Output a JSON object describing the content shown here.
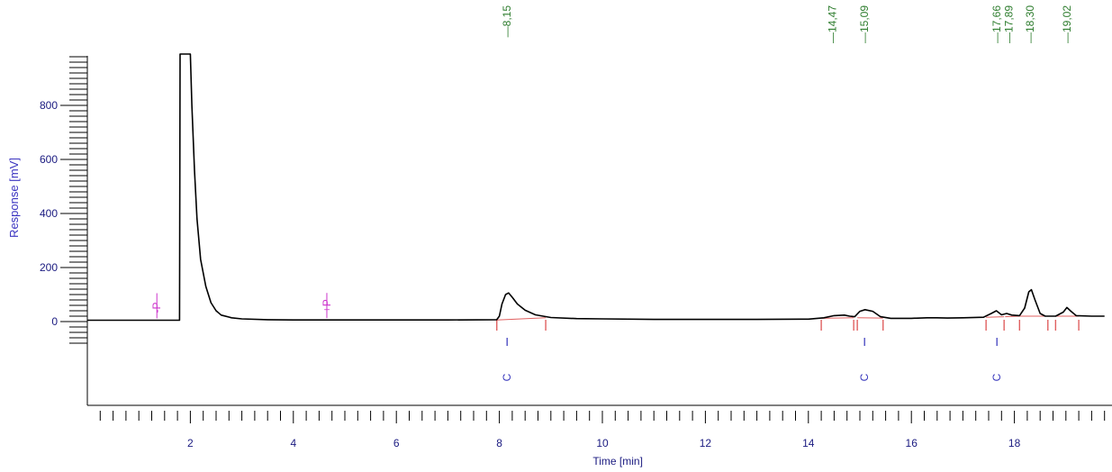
{
  "chart_data": {
    "type": "line",
    "xlabel": "Time [min]",
    "ylabel": "Response [mV]",
    "xlim": [
      0,
      19.75
    ],
    "ylim": [
      -80,
      1000
    ],
    "x_ticks": [
      2,
      4,
      6,
      8,
      10,
      12,
      14,
      16,
      18
    ],
    "x_tick_labels": [
      "2",
      "4",
      "6",
      "8",
      "10",
      "12",
      "14",
      "16",
      "18"
    ],
    "y_ticks": [
      0,
      200,
      400,
      600,
      800
    ],
    "y_tick_labels": [
      "0",
      "200",
      "400",
      "600",
      "800"
    ],
    "colors": {
      "trace": "#000000",
      "axis": "#000000",
      "tick_label": "#1a1a80",
      "ylabel": "#3a33c0",
      "peak_label": "#2e7d2e",
      "event": "#cc33cc",
      "baseline": "#e06060",
      "marker": "#3333bb"
    },
    "series": [
      {
        "values": [
          [
            0.0,
            5
          ],
          [
            1.79,
            5
          ],
          [
            1.8,
            990
          ],
          [
            2.0,
            990
          ],
          [
            2.03,
            800
          ],
          [
            2.08,
            560
          ],
          [
            2.13,
            380
          ],
          [
            2.2,
            230
          ],
          [
            2.3,
            130
          ],
          [
            2.4,
            70
          ],
          [
            2.5,
            40
          ],
          [
            2.6,
            24
          ],
          [
            2.8,
            14
          ],
          [
            3.0,
            10
          ],
          [
            3.5,
            7
          ],
          [
            4.0,
            6
          ],
          [
            5.0,
            6
          ],
          [
            6.0,
            6
          ],
          [
            7.0,
            6
          ],
          [
            7.95,
            7
          ],
          [
            8.0,
            20
          ],
          [
            8.05,
            65
          ],
          [
            8.12,
            100
          ],
          [
            8.18,
            106
          ],
          [
            8.25,
            90
          ],
          [
            8.35,
            65
          ],
          [
            8.5,
            42
          ],
          [
            8.7,
            25
          ],
          [
            9.0,
            15
          ],
          [
            9.5,
            11
          ],
          [
            10.0,
            10
          ],
          [
            11.0,
            8
          ],
          [
            12.0,
            8
          ],
          [
            13.0,
            8
          ],
          [
            14.0,
            9
          ],
          [
            14.3,
            14
          ],
          [
            14.5,
            22
          ],
          [
            14.7,
            24
          ],
          [
            14.8,
            20
          ],
          [
            14.9,
            18
          ],
          [
            15.0,
            38
          ],
          [
            15.1,
            44
          ],
          [
            15.25,
            38
          ],
          [
            15.4,
            18
          ],
          [
            15.6,
            12
          ],
          [
            16.0,
            12
          ],
          [
            16.3,
            14
          ],
          [
            16.5,
            14
          ],
          [
            16.7,
            13
          ],
          [
            17.0,
            14
          ],
          [
            17.4,
            16
          ],
          [
            17.55,
            30
          ],
          [
            17.65,
            40
          ],
          [
            17.75,
            25
          ],
          [
            17.85,
            30
          ],
          [
            17.95,
            24
          ],
          [
            18.1,
            22
          ],
          [
            18.2,
            50
          ],
          [
            18.28,
            110
          ],
          [
            18.33,
            118
          ],
          [
            18.4,
            80
          ],
          [
            18.5,
            30
          ],
          [
            18.6,
            20
          ],
          [
            18.8,
            20
          ],
          [
            18.95,
            35
          ],
          [
            19.02,
            52
          ],
          [
            19.1,
            38
          ],
          [
            19.2,
            22
          ],
          [
            19.5,
            20
          ],
          [
            19.75,
            20
          ]
        ]
      }
    ],
    "peak_labels": [
      {
        "x": 8.15,
        "text": "8,15"
      },
      {
        "x": 14.47,
        "text": "14,47"
      },
      {
        "x": 15.09,
        "text": "15,09"
      },
      {
        "x": 17.66,
        "text": "17,66"
      },
      {
        "x": 17.89,
        "text": "17,89"
      },
      {
        "x": 18.3,
        "text": "18,30"
      },
      {
        "x": 19.02,
        "text": "19,02"
      }
    ],
    "event_markers": [
      {
        "x": 1.35,
        "y": 5,
        "text": "-P"
      },
      {
        "x": 4.65,
        "y": 6,
        "text": "+P"
      }
    ],
    "baseline_segments": [
      {
        "x1": 7.95,
        "y1": 6,
        "x2": 8.9,
        "y2": 14
      },
      {
        "x1": 14.25,
        "y1": 12,
        "x2": 14.88,
        "y2": 14
      },
      {
        "x1": 14.95,
        "y1": 14,
        "x2": 15.45,
        "y2": 13
      },
      {
        "x1": 17.45,
        "y1": 16,
        "x2": 17.8,
        "y2": 18
      },
      {
        "x1": 17.82,
        "y1": 18,
        "x2": 18.1,
        "y2": 20
      },
      {
        "x1": 18.1,
        "y1": 20,
        "x2": 18.65,
        "y2": 20
      },
      {
        "x1": 18.8,
        "y1": 20,
        "x2": 19.25,
        "y2": 20
      }
    ],
    "boundary_ticks": [
      7.95,
      8.9,
      14.25,
      14.88,
      14.95,
      15.45,
      17.45,
      17.8,
      18.1,
      18.65,
      18.8,
      19.25
    ],
    "integration_marks": [
      {
        "x": 8.15,
        "text": "I"
      },
      {
        "x": 15.09,
        "text": "I"
      },
      {
        "x": 17.66,
        "text": "I"
      }
    ],
    "calibration_marks": [
      {
        "x": 8.15,
        "text": "C"
      },
      {
        "x": 15.09,
        "text": "C"
      },
      {
        "x": 17.66,
        "text": "C"
      }
    ]
  }
}
